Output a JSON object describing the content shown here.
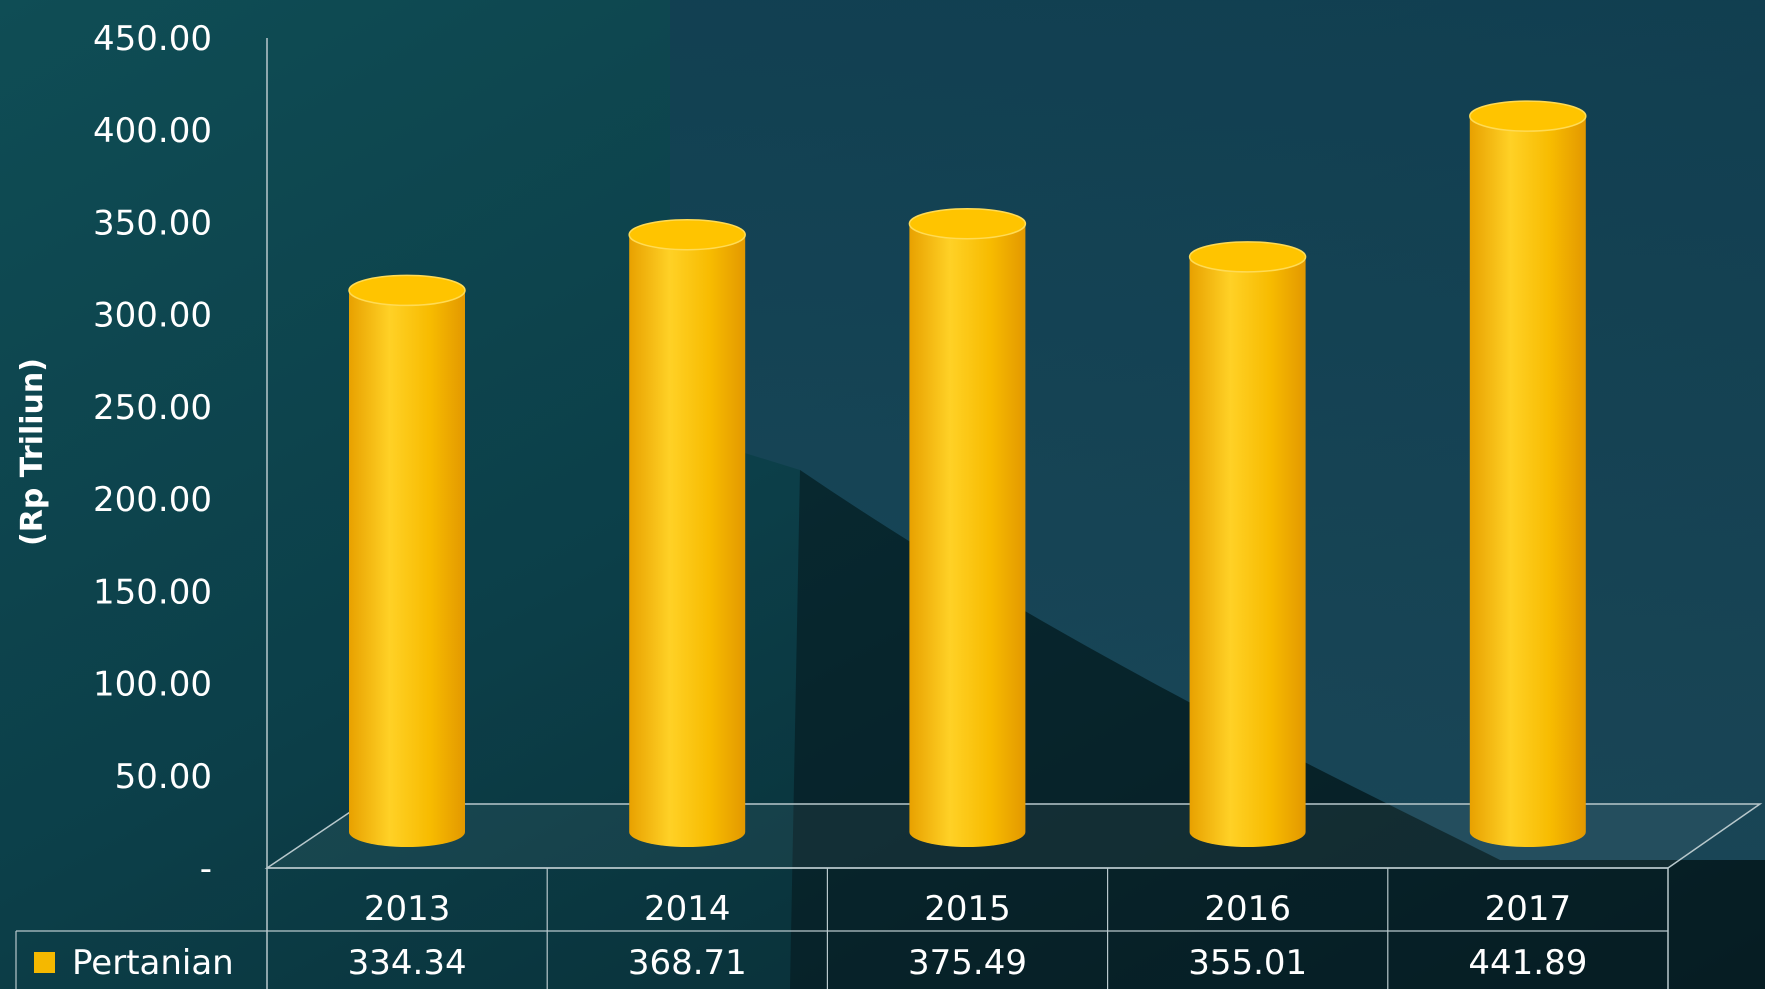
{
  "chart_data": {
    "type": "bar",
    "bar_style": "3d-cylinder",
    "categories": [
      "2013",
      "2014",
      "2015",
      "2016",
      "2017"
    ],
    "series": [
      {
        "name": "Pertanian",
        "values": [
          334.34,
          368.71,
          375.49,
          355.01,
          441.89
        ],
        "color": "#f5b800"
      }
    ],
    "ylabel": "(Rp Triliun)",
    "ylim": [
      0,
      450
    ],
    "y_ticks": [
      "-",
      "50.00",
      "100.00",
      "150.00",
      "200.00",
      "250.00",
      "300.00",
      "350.00",
      "400.00",
      "450.00"
    ],
    "grid": false,
    "legend_placement": "data-table-left",
    "data_table": {
      "legend_label": "Pertanian",
      "values": [
        "334.34",
        "368.71",
        "375.49",
        "355.01",
        "441.89"
      ]
    },
    "colors": {
      "bar": "#f5b800",
      "bar_light": "#ffd43a",
      "bar_dark": "#e29a00",
      "text": "#ffffff",
      "lines": "#b8c8cc",
      "background_sea": "#0f4a52",
      "background_dark": "#07222a"
    }
  }
}
